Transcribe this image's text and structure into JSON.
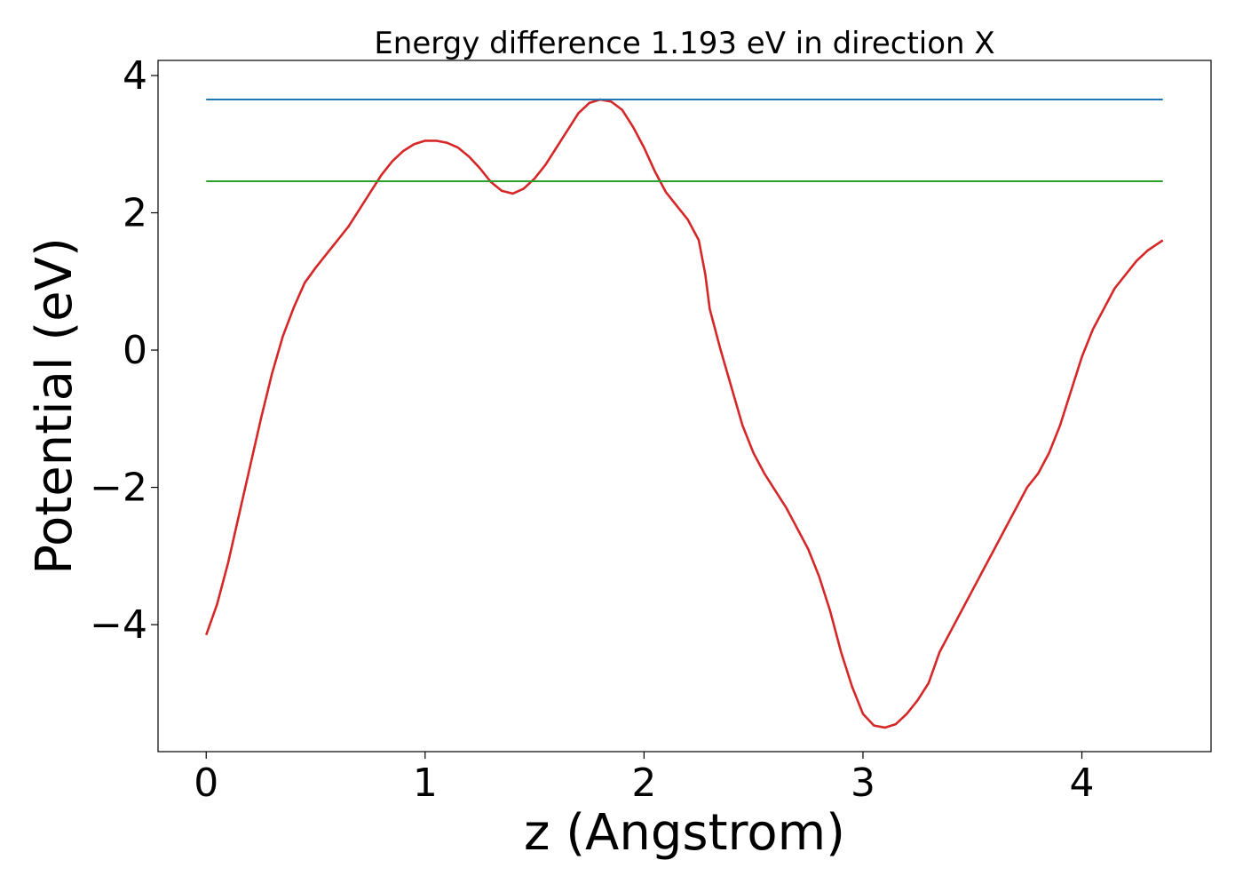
{
  "chart_data": {
    "type": "line",
    "title": "Energy difference 1.193 eV in direction X",
    "xlabel": "z (Angstrom)",
    "ylabel": "Potential (eV)",
    "xlim": [
      -0.22,
      4.59
    ],
    "ylim": [
      -5.85,
      4.22
    ],
    "xticks": [
      {
        "value": 0,
        "label": "0"
      },
      {
        "value": 1,
        "label": "1"
      },
      {
        "value": 2,
        "label": "2"
      },
      {
        "value": 3,
        "label": "3"
      },
      {
        "value": 4,
        "label": "4"
      }
    ],
    "yticks": [
      {
        "value": -4,
        "label": "−4"
      },
      {
        "value": -2,
        "label": "−2"
      },
      {
        "value": 0,
        "label": "0"
      },
      {
        "value": 2,
        "label": "2"
      },
      {
        "value": 4,
        "label": "4"
      }
    ],
    "grid": false,
    "legend": "none",
    "series": [
      {
        "color": "#d62728",
        "x": [
          0.0,
          0.05,
          0.1,
          0.15,
          0.2,
          0.25,
          0.3,
          0.35,
          0.4,
          0.45,
          0.5,
          0.55,
          0.6,
          0.65,
          0.7,
          0.75,
          0.8,
          0.85,
          0.9,
          0.95,
          1.0,
          1.05,
          1.1,
          1.15,
          1.2,
          1.25,
          1.3,
          1.35,
          1.4,
          1.45,
          1.5,
          1.55,
          1.6,
          1.65,
          1.7,
          1.75,
          1.8,
          1.85,
          1.9,
          1.95,
          2.0,
          2.05,
          2.1,
          2.15,
          2.2,
          2.25,
          2.28,
          2.3,
          2.35,
          2.4,
          2.45,
          2.5,
          2.55,
          2.6,
          2.65,
          2.7,
          2.75,
          2.8,
          2.85,
          2.9,
          2.95,
          3.0,
          3.05,
          3.1,
          3.15,
          3.2,
          3.25,
          3.3,
          3.35,
          3.4,
          3.45,
          3.5,
          3.55,
          3.6,
          3.65,
          3.7,
          3.75,
          3.8,
          3.85,
          3.9,
          3.95,
          4.0,
          4.05,
          4.1,
          4.15,
          4.2,
          4.25,
          4.3,
          4.37
        ],
        "values": [
          -4.15,
          -3.7,
          -3.1,
          -2.4,
          -1.7,
          -1.0,
          -0.35,
          0.2,
          0.62,
          0.98,
          1.2,
          1.4,
          1.6,
          1.8,
          2.05,
          2.3,
          2.55,
          2.75,
          2.9,
          3.0,
          3.05,
          3.05,
          3.02,
          2.95,
          2.82,
          2.65,
          2.45,
          2.32,
          2.28,
          2.35,
          2.5,
          2.7,
          2.95,
          3.2,
          3.45,
          3.6,
          3.65,
          3.62,
          3.5,
          3.25,
          2.95,
          2.6,
          2.3,
          2.1,
          1.9,
          1.6,
          1.1,
          0.6,
          0.0,
          -0.55,
          -1.1,
          -1.5,
          -1.8,
          -2.05,
          -2.3,
          -2.6,
          -2.9,
          -3.3,
          -3.8,
          -4.4,
          -4.9,
          -5.3,
          -5.47,
          -5.5,
          -5.45,
          -5.3,
          -5.1,
          -4.85,
          -4.4,
          -4.1,
          -3.8,
          -3.5,
          -3.2,
          -2.9,
          -2.6,
          -2.3,
          -2.0,
          -1.8,
          -1.5,
          -1.1,
          -0.6,
          -0.1,
          0.3,
          0.6,
          0.9,
          1.1,
          1.3,
          1.45,
          1.6
        ]
      },
      {
        "color": "#1f77b4",
        "x": [
          0.0,
          4.37
        ],
        "values": [
          3.65,
          3.65
        ]
      },
      {
        "color": "#2ca02c",
        "x": [
          0.0,
          4.37
        ],
        "values": [
          2.46,
          2.46
        ]
      }
    ]
  }
}
